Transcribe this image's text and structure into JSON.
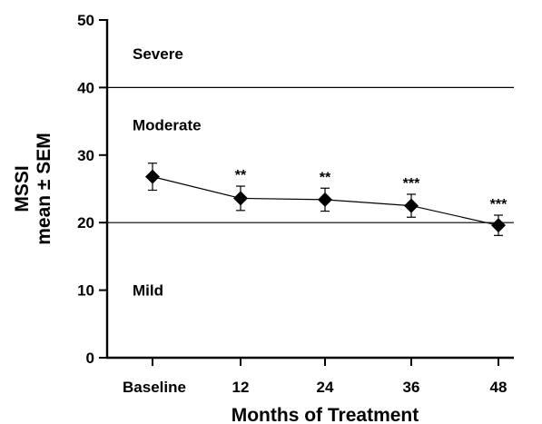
{
  "chart_data": {
    "type": "line",
    "title": "",
    "xlabel": "Months of Treatment",
    "ylabel_line1": "MSSI",
    "ylabel_line2": "mean ± SEM",
    "ylim": [
      0,
      50
    ],
    "yticks": [
      "0",
      "10",
      "20",
      "30",
      "40",
      "50"
    ],
    "categories": [
      "Baseline",
      "12",
      "24",
      "36",
      "48"
    ],
    "series": [
      {
        "values": [
          26.8,
          23.6,
          23.4,
          22.5,
          19.6
        ],
        "sem": [
          2.0,
          1.8,
          1.7,
          1.7,
          1.5
        ],
        "marker": "diamond",
        "color": "#000000"
      }
    ],
    "significance": [
      "",
      "**",
      "**",
      "***",
      "***"
    ],
    "reference_lines": [
      {
        "y": 40
      },
      {
        "y": 20
      }
    ],
    "zone_labels": [
      {
        "label": "Severe",
        "y": 45
      },
      {
        "label": "Moderate",
        "y": 34.5
      },
      {
        "label": "Mild",
        "y": 10
      }
    ],
    "grid": false,
    "legend": "none"
  }
}
